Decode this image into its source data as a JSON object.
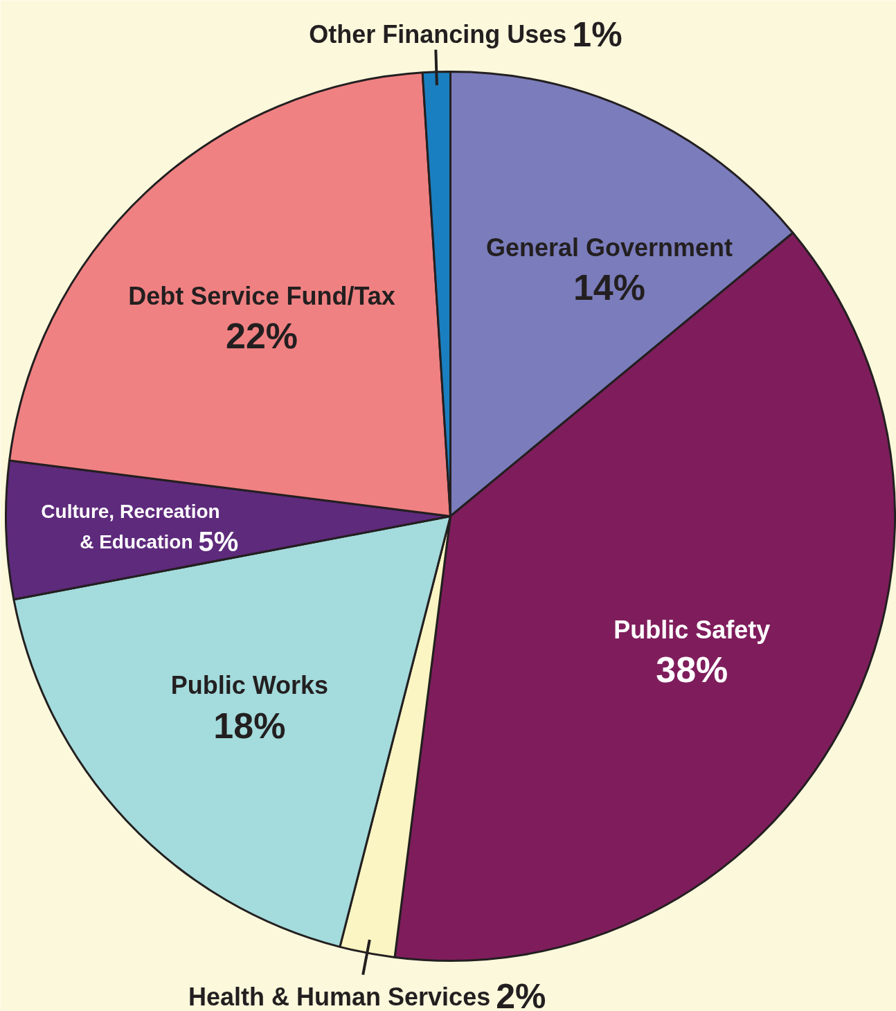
{
  "chart_data": {
    "type": "pie",
    "categories": [
      "General Government",
      "Public Safety",
      "Health & Human Services",
      "Public Works",
      "Culture, Recreation & Education",
      "Debt Service Fund/Tax",
      "Other Financing Uses"
    ],
    "values": [
      14,
      38,
      2,
      18,
      5,
      22,
      1
    ],
    "value_labels": [
      "14%",
      "38%",
      "2%",
      "18%",
      "5%",
      "22%",
      "1%"
    ],
    "colors": [
      "#7a7cbb",
      "#7f1d5c",
      "#faf5c2",
      "#a4dbdc",
      "#5e2a7c",
      "#f08182",
      "#1a7fc0"
    ]
  }
}
